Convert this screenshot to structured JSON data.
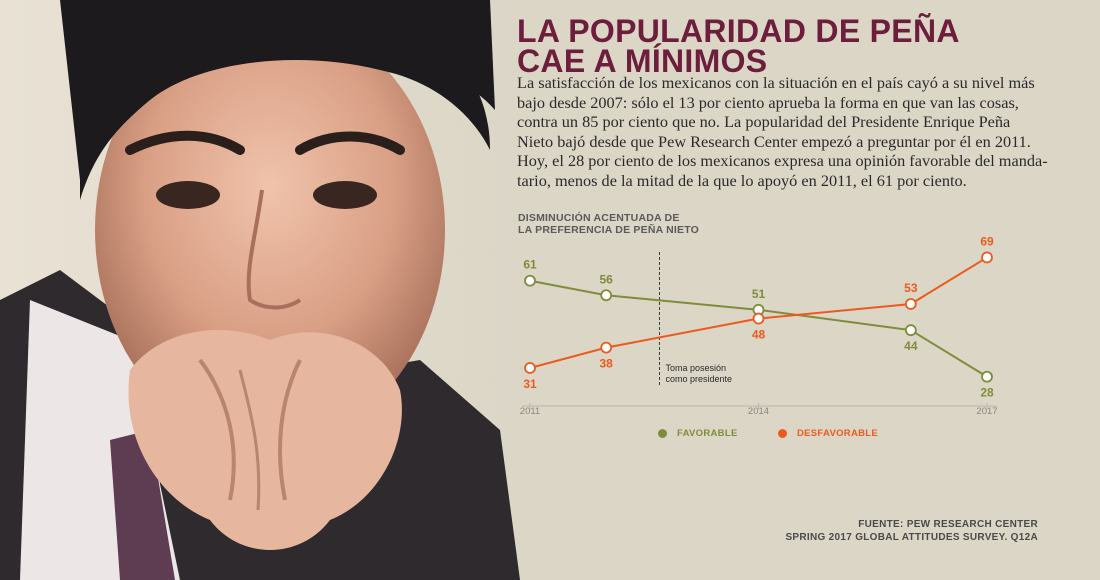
{
  "header": {
    "title_line1": "LA POPULARIDAD DE PEÑA",
    "title_line2": "CAE A MÍNIMOS"
  },
  "lede_lines": [
    "La satisfacción de los mexicanos con la situación en el país cayó a su nivel más",
    "bajo desde 2007: sólo el 13 por ciento aprueba la forma en que van las cosas,",
    "contra un 85 por ciento que no. La popularidad del Presidente Enrique Peña",
    "Nieto bajó desde que Pew Research Center empezó a preguntar por él en 2011.",
    "Hoy, el 28 por ciento de los mexicanos expresa una opinión favorable del manda-",
    "tario, menos de la mitad de la que lo apoyó en 2011, el 61 por ciento."
  ],
  "source": {
    "line1": "FUENTE: PEW RESEARCH CENTER",
    "line2": "SPRING 2017 GLOBAL ATTITUDES SURVEY. Q12A"
  },
  "colors": {
    "favorable": "#7f8c3c",
    "desfavorable": "#eb5a1e",
    "title": "#6c1e3c",
    "background": "#dcd6c7"
  },
  "chart_data": {
    "type": "line",
    "title_line1": "DISMINUCIÓN ACENTUADA DE",
    "title_line2": "LA PREFERENCIA DE PEÑA NIETO",
    "x": [
      2011,
      2012,
      2014,
      2016,
      2017
    ],
    "x_tick_labels": [
      "2011",
      "2014",
      "2017"
    ],
    "x_ticks": [
      2011,
      2014,
      2017
    ],
    "ylim": [
      20,
      75
    ],
    "grid": false,
    "legend_position": "bottom",
    "series": [
      {
        "name": "FAVORABLE",
        "values": [
          61,
          56,
          51,
          44,
          28
        ]
      },
      {
        "name": "DESFAVORABLE",
        "values": [
          31,
          38,
          48,
          53,
          69
        ]
      }
    ],
    "annotation": {
      "x": 2012.7,
      "line1": "Toma posesión",
      "line2": "como presidente"
    }
  }
}
